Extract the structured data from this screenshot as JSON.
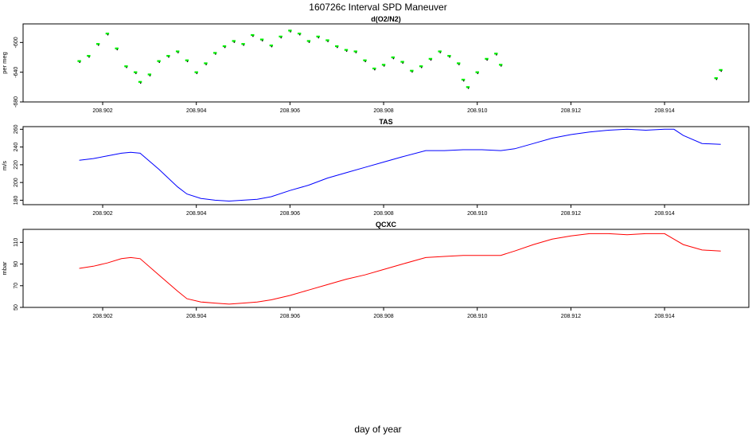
{
  "title": "160726c   Interval SPD Maneuver",
  "xlabel": "day of year",
  "chart_data": [
    {
      "type": "scatter",
      "title": "d(O2/N2)",
      "ylabel": "per meg",
      "xlim": [
        208.9003,
        208.9158
      ],
      "ylim": [
        -680,
        -575
      ],
      "xticks": [
        208.902,
        208.904,
        208.906,
        208.908,
        208.91,
        208.912,
        208.914
      ],
      "xtick_labels": [
        "208.902",
        "208.904",
        "208.906",
        "208.908",
        "208.910",
        "208.912",
        "208.914"
      ],
      "yticks": [
        -680,
        -640,
        -600
      ],
      "ytick_labels": [
        "-680",
        "-640",
        "-600"
      ],
      "colors": {
        "raw": "#000000",
        "smoothed": "#00ee00"
      },
      "series": [
        {
          "x": [
            208.9015,
            208.9017,
            208.9019,
            208.9021,
            208.9023,
            208.9025,
            208.9027,
            208.9028,
            208.903,
            208.9032,
            208.9034,
            208.9036,
            208.9038,
            208.904,
            208.9042,
            208.9044,
            208.9046,
            208.9048,
            208.905,
            208.9052,
            208.9054,
            208.9056,
            208.9058,
            208.906,
            208.9062,
            208.9064,
            208.9066,
            208.9068,
            208.907,
            208.9072,
            208.9074,
            208.9076,
            208.9078,
            208.908,
            208.9082,
            208.9084,
            208.9086,
            208.9088,
            208.909,
            208.9092,
            208.9094,
            208.9096,
            208.9097,
            208.9098,
            208.91,
            208.9102,
            208.9104,
            208.9105,
            208.9151,
            208.9152
          ],
          "y": [
            -625,
            -618,
            -602,
            -588,
            -608,
            -632,
            -640,
            -653,
            -643,
            -625,
            -618,
            -612,
            -624,
            -640,
            -628,
            -614,
            -605,
            -598,
            -602,
            -590,
            -596,
            -604,
            -592,
            -584,
            -588,
            -598,
            -592,
            -597,
            -605,
            -610,
            -612,
            -624,
            -635,
            -630,
            -620,
            -626,
            -638,
            -632,
            -622,
            -612,
            -618,
            -628,
            -650,
            -660,
            -640,
            -622,
            -615,
            -630,
            -648,
            -637
          ]
        }
      ]
    },
    {
      "type": "line",
      "title": "TAS",
      "ylabel": "m/s",
      "xlim": [
        208.9003,
        208.9158
      ],
      "ylim": [
        175,
        263
      ],
      "xticks": [
        208.902,
        208.904,
        208.906,
        208.908,
        208.91,
        208.912,
        208.914
      ],
      "xtick_labels": [
        "208.902",
        "208.904",
        "208.906",
        "208.908",
        "208.910",
        "208.912",
        "208.914"
      ],
      "yticks": [
        180,
        200,
        220,
        240,
        260
      ],
      "ytick_labels": [
        "180",
        "200",
        "220",
        "240",
        "260"
      ],
      "color": "#0000ff",
      "x": [
        208.9015,
        208.9018,
        208.9021,
        208.9024,
        208.9026,
        208.9028,
        208.9032,
        208.9036,
        208.9038,
        208.9041,
        208.9044,
        208.9047,
        208.905,
        208.9053,
        208.9056,
        208.906,
        208.9064,
        208.9068,
        208.9072,
        208.9076,
        208.908,
        208.9084,
        208.9089,
        208.9093,
        208.9097,
        208.9101,
        208.9105,
        208.9108,
        208.9112,
        208.9116,
        208.912,
        208.9124,
        208.9128,
        208.9132,
        208.9136,
        208.914,
        208.9142,
        208.9144,
        208.9148,
        208.9152
      ],
      "y": [
        225,
        227,
        230,
        233,
        234,
        233,
        215,
        195,
        187,
        182,
        180,
        179,
        180,
        181,
        184,
        191,
        197,
        205,
        211,
        217,
        223,
        229,
        236,
        236,
        237,
        237,
        236,
        238,
        244,
        250,
        254,
        257,
        259,
        260,
        259,
        260,
        260,
        253,
        244,
        243
      ]
    },
    {
      "type": "line",
      "title": "QCXC",
      "ylabel": "mbar",
      "xlim": [
        208.9003,
        208.9158
      ],
      "ylim": [
        50,
        122
      ],
      "xticks": [
        208.902,
        208.904,
        208.906,
        208.908,
        208.91,
        208.912,
        208.914
      ],
      "xtick_labels": [
        "208.902",
        "208.904",
        "208.906",
        "208.908",
        "208.910",
        "208.912",
        "208.914"
      ],
      "yticks": [
        50,
        70,
        90,
        110
      ],
      "ytick_labels": [
        "50",
        "70",
        "90",
        "110"
      ],
      "color": "#ff0000",
      "x": [
        208.9015,
        208.9018,
        208.9021,
        208.9024,
        208.9026,
        208.9028,
        208.9032,
        208.9036,
        208.9038,
        208.9041,
        208.9044,
        208.9047,
        208.905,
        208.9053,
        208.9056,
        208.906,
        208.9064,
        208.9068,
        208.9072,
        208.9076,
        208.908,
        208.9084,
        208.9089,
        208.9093,
        208.9097,
        208.9101,
        208.9105,
        208.9108,
        208.9112,
        208.9116,
        208.912,
        208.9124,
        208.9128,
        208.9132,
        208.9136,
        208.914,
        208.9142,
        208.9144,
        208.9148,
        208.9152
      ],
      "y": [
        86,
        88,
        91,
        95,
        96,
        95,
        80,
        65,
        58,
        55,
        54,
        53,
        54,
        55,
        57,
        61,
        66,
        71,
        76,
        80,
        85,
        90,
        96,
        97,
        98,
        98,
        98,
        102,
        108,
        113,
        116,
        118,
        118,
        117,
        118,
        118,
        113,
        108,
        103,
        102
      ]
    }
  ]
}
